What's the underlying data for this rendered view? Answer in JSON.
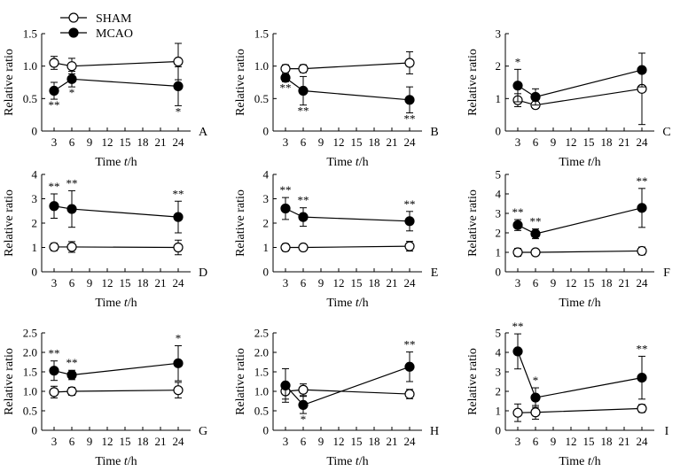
{
  "legend": [
    {
      "label": "SHAM",
      "marker": "open-circle"
    },
    {
      "label": "MCAO",
      "marker": "filled-circle"
    }
  ],
  "chart_data": [
    {
      "type": "line",
      "panel_label": "A",
      "xlabel": "Time t/h",
      "ylabel": "Relative ratio",
      "x": [
        3,
        6,
        24
      ],
      "xticks": [
        "3",
        "6",
        "9",
        "12",
        "15",
        "18",
        "21",
        "24"
      ],
      "ylim": [
        0,
        1.5
      ],
      "yticks": [
        "0",
        "0.5",
        "1.0",
        "1.5"
      ],
      "series": [
        {
          "name": "SHAM",
          "values": [
            1.05,
            1.0,
            1.07
          ],
          "errors": [
            0.1,
            0.12,
            0.28
          ],
          "annotations": [
            "",
            "",
            ""
          ]
        },
        {
          "name": "MCAO",
          "values": [
            0.62,
            0.8,
            0.69
          ],
          "errors": [
            0.13,
            0.12,
            0.3
          ],
          "annotations": [
            "**",
            "*",
            "*"
          ]
        }
      ]
    },
    {
      "type": "line",
      "panel_label": "B",
      "xlabel": "Time t/h",
      "ylabel": "Relative ratio",
      "x": [
        3,
        6,
        24
      ],
      "xticks": [
        "3",
        "6",
        "9",
        "12",
        "15",
        "18",
        "21",
        "24"
      ],
      "ylim": [
        0,
        1.5
      ],
      "yticks": [
        "0",
        "0.5",
        "1.0",
        "1.5"
      ],
      "series": [
        {
          "name": "SHAM",
          "values": [
            0.96,
            0.96,
            1.05
          ],
          "errors": [
            0.06,
            0.06,
            0.17
          ],
          "annotations": [
            "",
            "",
            ""
          ]
        },
        {
          "name": "MCAO",
          "values": [
            0.82,
            0.62,
            0.48
          ],
          "errors": [
            0.06,
            0.22,
            0.2
          ],
          "annotations": [
            "**",
            "**",
            "**"
          ]
        }
      ]
    },
    {
      "type": "line",
      "panel_label": "C",
      "xlabel": "Time t/h",
      "ylabel": "Relative ratio",
      "x": [
        3,
        6,
        24
      ],
      "xticks": [
        "3",
        "6",
        "9",
        "12",
        "15",
        "18",
        "21",
        "24"
      ],
      "ylim": [
        0,
        3
      ],
      "yticks": [
        "0",
        "1",
        "2",
        "3"
      ],
      "series": [
        {
          "name": "SHAM",
          "values": [
            0.95,
            0.8,
            1.3
          ],
          "errors": [
            0.2,
            0.1,
            1.1
          ],
          "annotations": [
            "",
            "",
            ""
          ]
        },
        {
          "name": "MCAO",
          "values": [
            1.4,
            1.05,
            1.88
          ],
          "errors": [
            0.5,
            0.25,
            0.52
          ],
          "annotations": [
            "*",
            "",
            ""
          ]
        }
      ]
    },
    {
      "type": "line",
      "panel_label": "D",
      "xlabel": "Time t/h",
      "ylabel": "Relative ratio",
      "x": [
        3,
        6,
        24
      ],
      "xticks": [
        "3",
        "6",
        "9",
        "12",
        "15",
        "18",
        "21",
        "24"
      ],
      "ylim": [
        0,
        4
      ],
      "yticks": [
        "0",
        "1",
        "2",
        "3",
        "4"
      ],
      "series": [
        {
          "name": "SHAM",
          "values": [
            1.02,
            1.02,
            1.0
          ],
          "errors": [
            0.15,
            0.22,
            0.3
          ],
          "annotations": [
            "",
            "",
            ""
          ]
        },
        {
          "name": "MCAO",
          "values": [
            2.7,
            2.58,
            2.25
          ],
          "errors": [
            0.5,
            0.75,
            0.65
          ],
          "annotations": [
            "**",
            "**",
            "**"
          ]
        }
      ]
    },
    {
      "type": "line",
      "panel_label": "E",
      "xlabel": "Time t/h",
      "ylabel": "Relative ratio",
      "x": [
        3,
        6,
        24
      ],
      "xticks": [
        "3",
        "6",
        "9",
        "12",
        "15",
        "18",
        "21",
        "24"
      ],
      "ylim": [
        0,
        4
      ],
      "yticks": [
        "0",
        "1",
        "2",
        "3",
        "4"
      ],
      "series": [
        {
          "name": "SHAM",
          "values": [
            1.0,
            1.0,
            1.05
          ],
          "errors": [
            0.15,
            0.12,
            0.2
          ],
          "annotations": [
            "",
            "",
            ""
          ]
        },
        {
          "name": "MCAO",
          "values": [
            2.6,
            2.25,
            2.08
          ],
          "errors": [
            0.45,
            0.38,
            0.4
          ],
          "annotations": [
            "**",
            "**",
            "**"
          ]
        }
      ]
    },
    {
      "type": "line",
      "panel_label": "F",
      "xlabel": "Time t/h",
      "ylabel": "Relative ratio",
      "x": [
        3,
        6,
        24
      ],
      "xticks": [
        "3",
        "6",
        "9",
        "12",
        "15",
        "18",
        "21",
        "24"
      ],
      "ylim": [
        0,
        5
      ],
      "yticks": [
        "0",
        "1",
        "2",
        "3",
        "4",
        "5"
      ],
      "series": [
        {
          "name": "SHAM",
          "values": [
            1.0,
            1.0,
            1.07
          ],
          "errors": [
            0.2,
            0.12,
            0.2
          ],
          "annotations": [
            "",
            "",
            ""
          ]
        },
        {
          "name": "MCAO",
          "values": [
            2.4,
            1.95,
            3.28
          ],
          "errors": [
            0.28,
            0.25,
            1.0
          ],
          "annotations": [
            "**",
            "**",
            "**"
          ]
        }
      ]
    },
    {
      "type": "line",
      "panel_label": "G",
      "xlabel": "Time t/h",
      "ylabel": "Relative ratio",
      "x": [
        3,
        6,
        24
      ],
      "xticks": [
        "3",
        "6",
        "9",
        "12",
        "15",
        "18",
        "21",
        "24"
      ],
      "ylim": [
        0,
        2.5
      ],
      "yticks": [
        "0",
        "0.5",
        "1.0",
        "1.5",
        "2.0",
        "2.5"
      ],
      "series": [
        {
          "name": "SHAM",
          "values": [
            0.98,
            1.0,
            1.03
          ],
          "errors": [
            0.15,
            0.1,
            0.2
          ],
          "annotations": [
            "",
            "",
            ""
          ]
        },
        {
          "name": "MCAO",
          "values": [
            1.53,
            1.42,
            1.72
          ],
          "errors": [
            0.25,
            0.12,
            0.45
          ],
          "annotations": [
            "**",
            "**",
            "*"
          ]
        }
      ]
    },
    {
      "type": "line",
      "panel_label": "H",
      "xlabel": "Time t/h",
      "ylabel": "Relative ratio",
      "x": [
        3,
        6,
        24
      ],
      "xticks": [
        "3",
        "6",
        "9",
        "12",
        "15",
        "18",
        "21",
        "24"
      ],
      "ylim": [
        0,
        2.5
      ],
      "yticks": [
        "0",
        "0.5",
        "1.0",
        "1.5",
        "2.0",
        "2.5"
      ],
      "series": [
        {
          "name": "SHAM",
          "values": [
            1.0,
            1.04,
            0.93
          ],
          "errors": [
            0.2,
            0.15,
            0.12
          ],
          "annotations": [
            "",
            "",
            ""
          ]
        },
        {
          "name": "MCAO",
          "values": [
            1.15,
            0.65,
            1.63
          ],
          "errors": [
            0.43,
            0.22,
            0.38
          ],
          "annotations": [
            "",
            "*",
            "**"
          ]
        }
      ]
    },
    {
      "type": "line",
      "panel_label": "I",
      "xlabel": "Time t/h",
      "ylabel": "Relative ratio",
      "x": [
        3,
        6,
        24
      ],
      "xticks": [
        "3",
        "6",
        "9",
        "12",
        "15",
        "18",
        "21",
        "24"
      ],
      "ylim": [
        0,
        5
      ],
      "yticks": [
        "0",
        "1",
        "2",
        "3",
        "4",
        "5"
      ],
      "series": [
        {
          "name": "SHAM",
          "values": [
            0.9,
            0.92,
            1.12
          ],
          "errors": [
            0.45,
            0.35,
            0.2
          ],
          "annotations": [
            "",
            "",
            ""
          ]
        },
        {
          "name": "MCAO",
          "values": [
            4.05,
            1.68,
            2.7
          ],
          "errors": [
            0.9,
            0.5,
            1.1
          ],
          "annotations": [
            "**",
            "*",
            "**"
          ]
        }
      ]
    }
  ]
}
